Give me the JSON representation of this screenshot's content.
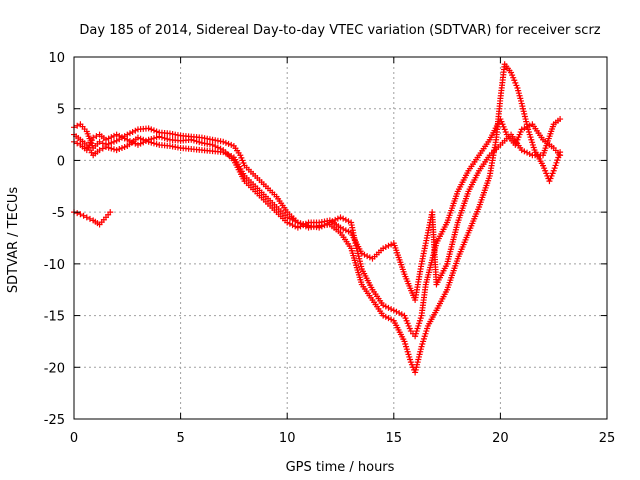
{
  "chart_data": {
    "type": "scatter",
    "title": "Day 185 of 2014, Sidereal Day-to-day VTEC variation (SDTVAR) for receiver scrz",
    "xlabel": "GPS time / hours",
    "ylabel": "SDTVAR / TECUs",
    "xlim": [
      0,
      25
    ],
    "ylim": [
      -25,
      10
    ],
    "xticks": [
      0,
      5,
      10,
      15,
      20,
      25
    ],
    "yticks": [
      -25,
      -20,
      -15,
      -10,
      -5,
      0,
      5,
      10
    ],
    "grid": true,
    "marker": "+",
    "series": [
      {
        "name": "trace-a",
        "color": "#ff0000",
        "points": [
          [
            0.0,
            3.2
          ],
          [
            0.3,
            3.5
          ],
          [
            0.6,
            2.8
          ],
          [
            0.9,
            1.2
          ],
          [
            1.2,
            1.8
          ],
          [
            1.5,
            1.5
          ],
          [
            2.0,
            1.9
          ],
          [
            2.5,
            2.5
          ],
          [
            3.0,
            3.0
          ],
          [
            3.5,
            3.1
          ],
          [
            4.0,
            2.7
          ],
          [
            4.5,
            2.6
          ],
          [
            5.0,
            2.4
          ],
          [
            5.5,
            2.3
          ],
          [
            6.0,
            2.2
          ],
          [
            6.5,
            2.0
          ],
          [
            7.0,
            1.8
          ],
          [
            7.5,
            1.4
          ],
          [
            7.8,
            0.5
          ],
          [
            8.0,
            -0.5
          ],
          [
            8.5,
            -1.5
          ],
          [
            9.0,
            -2.5
          ],
          [
            9.5,
            -3.5
          ],
          [
            10.0,
            -5.0
          ],
          [
            10.5,
            -6.0
          ],
          [
            11.0,
            -6.3
          ],
          [
            11.5,
            -6.5
          ],
          [
            12.0,
            -6.0
          ],
          [
            12.5,
            -5.5
          ],
          [
            13.0,
            -6.0
          ],
          [
            13.2,
            -8.0
          ],
          [
            13.5,
            -10.5
          ],
          [
            14.0,
            -12.5
          ],
          [
            14.5,
            -14.0
          ],
          [
            15.0,
            -14.5
          ],
          [
            15.5,
            -15.0
          ],
          [
            15.8,
            -16.5
          ],
          [
            16.0,
            -17.0
          ],
          [
            16.3,
            -15.0
          ],
          [
            16.5,
            -12.0
          ],
          [
            17.0,
            -8.0
          ],
          [
            17.5,
            -6.0
          ],
          [
            18.0,
            -3.0
          ],
          [
            18.5,
            -1.0
          ],
          [
            19.0,
            0.5
          ],
          [
            19.5,
            2.0
          ],
          [
            20.0,
            4.0
          ],
          [
            20.3,
            2.5
          ],
          [
            20.7,
            1.5
          ],
          [
            21.0,
            3.0
          ],
          [
            21.5,
            3.5
          ],
          [
            22.0,
            2.0
          ],
          [
            22.5,
            1.2
          ],
          [
            22.8,
            0.5
          ]
        ]
      },
      {
        "name": "trace-b",
        "color": "#ff0000",
        "points": [
          [
            0.0,
            2.5
          ],
          [
            0.3,
            2.0
          ],
          [
            0.6,
            1.5
          ],
          [
            0.9,
            0.5
          ],
          [
            1.2,
            1.0
          ],
          [
            1.5,
            1.3
          ],
          [
            2.0,
            1.0
          ],
          [
            2.5,
            1.4
          ],
          [
            3.0,
            2.2
          ],
          [
            3.5,
            1.8
          ],
          [
            4.0,
            1.5
          ],
          [
            4.5,
            1.4
          ],
          [
            5.0,
            1.2
          ],
          [
            5.5,
            1.1
          ],
          [
            6.0,
            1.0
          ],
          [
            6.5,
            0.9
          ],
          [
            7.0,
            0.8
          ],
          [
            7.5,
            0.3
          ],
          [
            8.0,
            -1.5
          ],
          [
            8.5,
            -2.5
          ],
          [
            9.0,
            -3.5
          ],
          [
            9.5,
            -4.5
          ],
          [
            10.0,
            -5.5
          ],
          [
            10.5,
            -6.0
          ],
          [
            11.0,
            -6.5
          ],
          [
            11.5,
            -6.3
          ],
          [
            12.0,
            -6.2
          ],
          [
            12.5,
            -7.0
          ],
          [
            13.0,
            -8.5
          ],
          [
            13.5,
            -12.0
          ],
          [
            14.0,
            -13.5
          ],
          [
            14.5,
            -15.0
          ],
          [
            15.0,
            -15.5
          ],
          [
            15.5,
            -17.5
          ],
          [
            15.8,
            -19.5
          ],
          [
            16.0,
            -20.5
          ],
          [
            16.3,
            -18.0
          ],
          [
            16.6,
            -16.0
          ],
          [
            17.0,
            -14.5
          ],
          [
            17.5,
            -12.5
          ],
          [
            18.0,
            -9.5
          ],
          [
            18.5,
            -7.0
          ],
          [
            19.0,
            -4.5
          ],
          [
            19.5,
            -1.5
          ],
          [
            19.8,
            2.0
          ],
          [
            20.0,
            6.0
          ],
          [
            20.2,
            9.3
          ],
          [
            20.5,
            8.5
          ],
          [
            20.8,
            7.0
          ],
          [
            21.0,
            5.5
          ],
          [
            21.3,
            3.0
          ],
          [
            21.6,
            1.0
          ],
          [
            22.0,
            -0.5
          ],
          [
            22.3,
            -2.0
          ],
          [
            22.5,
            -1.0
          ],
          [
            22.8,
            0.8
          ]
        ]
      },
      {
        "name": "trace-c",
        "color": "#ff0000",
        "points": [
          [
            0.0,
            1.8
          ],
          [
            0.3,
            1.5
          ],
          [
            0.6,
            1.0
          ],
          [
            0.9,
            2.2
          ],
          [
            1.2,
            2.5
          ],
          [
            1.5,
            2.0
          ],
          [
            2.0,
            2.5
          ],
          [
            2.5,
            2.0
          ],
          [
            3.0,
            1.5
          ],
          [
            3.5,
            2.0
          ],
          [
            4.0,
            2.3
          ],
          [
            4.5,
            2.0
          ],
          [
            5.0,
            1.9
          ],
          [
            5.5,
            2.0
          ],
          [
            6.0,
            1.7
          ],
          [
            6.5,
            1.5
          ],
          [
            7.0,
            1.0
          ],
          [
            7.5,
            0.0
          ],
          [
            8.0,
            -2.0
          ],
          [
            8.5,
            -3.0
          ],
          [
            9.0,
            -4.0
          ],
          [
            9.5,
            -5.0
          ],
          [
            10.0,
            -6.0
          ],
          [
            10.5,
            -6.5
          ],
          [
            11.0,
            -6.0
          ],
          [
            11.5,
            -6.0
          ],
          [
            12.0,
            -5.8
          ],
          [
            12.5,
            -6.5
          ],
          [
            13.0,
            -7.0
          ],
          [
            13.5,
            -9.0
          ],
          [
            14.0,
            -9.5
          ],
          [
            14.5,
            -8.5
          ],
          [
            15.0,
            -8.0
          ],
          [
            15.5,
            -11.0
          ],
          [
            16.0,
            -13.5
          ],
          [
            16.3,
            -10.0
          ],
          [
            16.5,
            -8.0
          ],
          [
            16.8,
            -5.0
          ],
          [
            17.0,
            -12.0
          ],
          [
            17.5,
            -10.0
          ],
          [
            18.0,
            -6.0
          ],
          [
            18.5,
            -3.0
          ],
          [
            19.0,
            -1.0
          ],
          [
            19.5,
            0.5
          ],
          [
            20.0,
            1.5
          ],
          [
            20.5,
            2.5
          ],
          [
            21.0,
            1.0
          ],
          [
            21.5,
            0.5
          ],
          [
            22.0,
            0.5
          ],
          [
            22.5,
            3.5
          ],
          [
            22.8,
            4.0
          ]
        ]
      },
      {
        "name": "trace-d",
        "color": "#ff0000",
        "points": [
          [
            0.0,
            -5.0
          ],
          [
            0.3,
            -5.2
          ],
          [
            0.6,
            -5.5
          ],
          [
            0.9,
            -5.8
          ],
          [
            1.2,
            -6.2
          ],
          [
            1.5,
            -5.5
          ],
          [
            1.7,
            -5.0
          ]
        ]
      }
    ]
  }
}
